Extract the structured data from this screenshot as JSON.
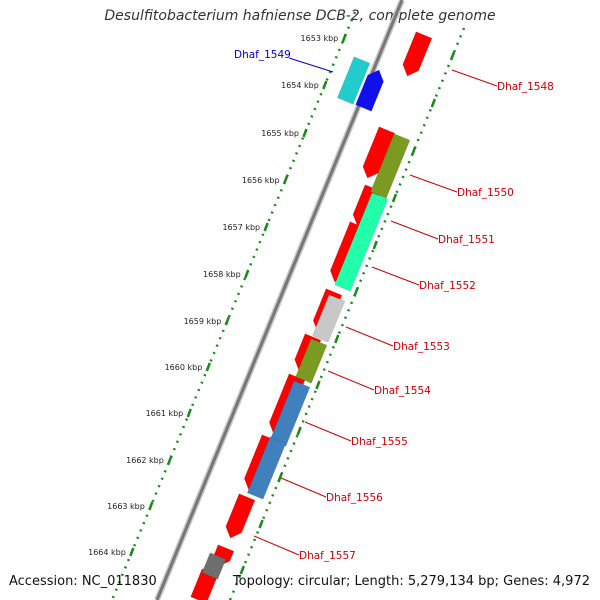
{
  "title": "Desulfitobacterium hafniense DCB-2, complete genome",
  "footer": {
    "accession": "Accession: NC_011830",
    "summary": "Topology: circular; Length: 5,279,134 bp; Genes: 4,972"
  },
  "ticks": [
    "1653 kbp",
    "1654 kbp",
    "1655 kbp",
    "1656 kbp",
    "1657 kbp",
    "1658 kbp",
    "1659 kbp",
    "1660 kbp",
    "1661 kbp",
    "1662 kbp",
    "1663 kbp",
    "1664 kbp"
  ],
  "gene_labels": [
    {
      "name": "Dhaf_1549",
      "color": "#0000cc"
    },
    {
      "name": "Dhaf_1548",
      "color": "#cc0000"
    },
    {
      "name": "Dhaf_1550",
      "color": "#cc0000"
    },
    {
      "name": "Dhaf_1551",
      "color": "#cc0000"
    },
    {
      "name": "Dhaf_1552",
      "color": "#cc0000"
    },
    {
      "name": "Dhaf_1553",
      "color": "#cc0000"
    },
    {
      "name": "Dhaf_1554",
      "color": "#cc0000"
    },
    {
      "name": "Dhaf_1555",
      "color": "#cc0000"
    },
    {
      "name": "Dhaf_1556",
      "color": "#cc0000"
    },
    {
      "name": "Dhaf_1557",
      "color": "#cc0000"
    }
  ],
  "colors": {
    "cds_red": "#ff0000",
    "teal": "#22cccc",
    "blue": "#1010ee",
    "olive": "#7a9a22",
    "spring_green": "#22ffaa",
    "light_gray": "#c8c8c8",
    "steel_blue": "#3f80bd",
    "dark_gray": "#6e6e6e",
    "backbone": "#777777",
    "tick_green": "#1a8a1a"
  }
}
